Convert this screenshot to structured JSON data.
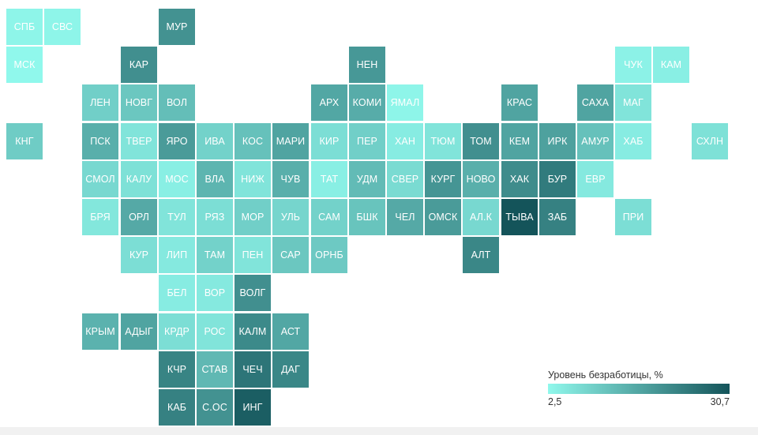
{
  "legend": {
    "title": "Уровень безработицы, %",
    "min_label": "2,5",
    "max_label": "30,7",
    "min": 2.5,
    "max": 30.7,
    "color_low": "#90f8ec",
    "color_high": "#14545a"
  },
  "regions": [
    {
      "label": "СПБ",
      "col": 0,
      "row": 0,
      "value": 3.0
    },
    {
      "label": "СВС",
      "col": 1,
      "row": 0,
      "value": 3.0
    },
    {
      "label": "МУР",
      "col": 4,
      "row": 0,
      "value": 20.0
    },
    {
      "label": "МСК",
      "col": 0,
      "row": 1,
      "value": 2.5
    },
    {
      "label": "КАР",
      "col": 3,
      "row": 1,
      "value": 20.5
    },
    {
      "label": "НЕН",
      "col": 9,
      "row": 1,
      "value": 19.0
    },
    {
      "label": "ЧУК",
      "col": 16,
      "row": 1,
      "value": 3.5
    },
    {
      "label": "КАМ",
      "col": 17,
      "row": 1,
      "value": 4.0
    },
    {
      "label": "ЛЕН",
      "col": 2,
      "row": 2,
      "value": 9.5
    },
    {
      "label": "НОВГ",
      "col": 3,
      "row": 2,
      "value": 11.0
    },
    {
      "label": "ВОЛ",
      "col": 4,
      "row": 2,
      "value": 12.5
    },
    {
      "label": "АРХ",
      "col": 8,
      "row": 2,
      "value": 16.5
    },
    {
      "label": "КОМИ",
      "col": 9,
      "row": 2,
      "value": 15.5
    },
    {
      "label": "ЯМАЛ",
      "col": 10,
      "row": 2,
      "value": 3.0
    },
    {
      "label": "КРАС",
      "col": 13,
      "row": 2,
      "value": 17.0
    },
    {
      "label": "САХА",
      "col": 15,
      "row": 2,
      "value": 17.0
    },
    {
      "label": "МАГ",
      "col": 16,
      "row": 2,
      "value": 6.0
    },
    {
      "label": "КНГ",
      "col": 0,
      "row": 3,
      "value": 10.0
    },
    {
      "label": "ПСК",
      "col": 2,
      "row": 3,
      "value": 15.0
    },
    {
      "label": "ТВЕР",
      "col": 3,
      "row": 3,
      "value": 6.0
    },
    {
      "label": "ЯРО",
      "col": 4,
      "row": 3,
      "value": 18.5
    },
    {
      "label": "ИВА",
      "col": 5,
      "row": 3,
      "value": 9.0
    },
    {
      "label": "КОС",
      "col": 6,
      "row": 3,
      "value": 12.0
    },
    {
      "label": "МАРИ",
      "col": 7,
      "row": 3,
      "value": 17.0
    },
    {
      "label": "КИР",
      "col": 8,
      "row": 3,
      "value": 7.0
    },
    {
      "label": "ПЕР",
      "col": 9,
      "row": 3,
      "value": 9.5
    },
    {
      "label": "ХАН",
      "col": 10,
      "row": 3,
      "value": 4.5
    },
    {
      "label": "ТЮМ",
      "col": 11,
      "row": 3,
      "value": 6.0
    },
    {
      "label": "ТОМ",
      "col": 12,
      "row": 3,
      "value": 20.5
    },
    {
      "label": "КЕМ",
      "col": 13,
      "row": 3,
      "value": 17.0
    },
    {
      "label": "ИРК",
      "col": 14,
      "row": 3,
      "value": 17.5
    },
    {
      "label": "АМУР",
      "col": 15,
      "row": 3,
      "value": 12.0
    },
    {
      "label": "ХАБ",
      "col": 16,
      "row": 3,
      "value": 4.5
    },
    {
      "label": "СХЛН",
      "col": 18,
      "row": 3,
      "value": 6.5
    },
    {
      "label": "СМОЛ",
      "col": 2,
      "row": 4,
      "value": 8.0
    },
    {
      "label": "КАЛУ",
      "col": 3,
      "row": 4,
      "value": 6.5
    },
    {
      "label": "МОС",
      "col": 4,
      "row": 4,
      "value": 4.0
    },
    {
      "label": "ВЛА",
      "col": 5,
      "row": 4,
      "value": 14.0
    },
    {
      "label": "НИЖ",
      "col": 6,
      "row": 4,
      "value": 6.0
    },
    {
      "label": "ЧУВ",
      "col": 7,
      "row": 4,
      "value": 15.0
    },
    {
      "label": "ТАТ",
      "col": 8,
      "row": 4,
      "value": 4.0
    },
    {
      "label": "УДМ",
      "col": 9,
      "row": 4,
      "value": 13.0
    },
    {
      "label": "СВЕР",
      "col": 10,
      "row": 4,
      "value": 7.5
    },
    {
      "label": "КУРГ",
      "col": 11,
      "row": 4,
      "value": 19.5
    },
    {
      "label": "НОВО",
      "col": 12,
      "row": 4,
      "value": 15.0
    },
    {
      "label": "ХАК",
      "col": 13,
      "row": 4,
      "value": 21.0
    },
    {
      "label": "БУР",
      "col": 14,
      "row": 4,
      "value": 24.0
    },
    {
      "label": "ЕВР",
      "col": 15,
      "row": 4,
      "value": 5.0
    },
    {
      "label": "БРЯ",
      "col": 2,
      "row": 5,
      "value": 5.5
    },
    {
      "label": "ОРЛ",
      "col": 3,
      "row": 5,
      "value": 16.0
    },
    {
      "label": "ТУЛ",
      "col": 4,
      "row": 5,
      "value": 6.0
    },
    {
      "label": "РЯЗ",
      "col": 5,
      "row": 5,
      "value": 7.0
    },
    {
      "label": "МОР",
      "col": 6,
      "row": 5,
      "value": 9.5
    },
    {
      "label": "УЛЬ",
      "col": 7,
      "row": 5,
      "value": 8.5
    },
    {
      "label": "САМ",
      "col": 8,
      "row": 5,
      "value": 9.0
    },
    {
      "label": "БШК",
      "col": 9,
      "row": 5,
      "value": 11.5
    },
    {
      "label": "ЧЕЛ",
      "col": 10,
      "row": 5,
      "value": 16.0
    },
    {
      "label": "ОМСК",
      "col": 11,
      "row": 5,
      "value": 18.5
    },
    {
      "label": "АЛ.К",
      "col": 12,
      "row": 5,
      "value": 8.0
    },
    {
      "label": "ТЫВА",
      "col": 13,
      "row": 5,
      "value": 30.7
    },
    {
      "label": "ЗАБ",
      "col": 14,
      "row": 5,
      "value": 23.0
    },
    {
      "label": "ПРИ",
      "col": 16,
      "row": 5,
      "value": 7.0
    },
    {
      "label": "КУР",
      "col": 3,
      "row": 6,
      "value": 7.0
    },
    {
      "label": "ЛИП",
      "col": 4,
      "row": 6,
      "value": 5.0
    },
    {
      "label": "ТАМ",
      "col": 5,
      "row": 6,
      "value": 9.0
    },
    {
      "label": "ПЕН",
      "col": 6,
      "row": 6,
      "value": 6.0
    },
    {
      "label": "САР",
      "col": 7,
      "row": 6,
      "value": 11.0
    },
    {
      "label": "ОРНБ",
      "col": 8,
      "row": 6,
      "value": 10.5
    },
    {
      "label": "АЛТ",
      "col": 12,
      "row": 6,
      "value": 22.0
    },
    {
      "label": "БЕЛ",
      "col": 4,
      "row": 7,
      "value": 4.5
    },
    {
      "label": "ВОР",
      "col": 5,
      "row": 7,
      "value": 5.0
    },
    {
      "label": "ВОЛГ",
      "col": 6,
      "row": 7,
      "value": 20.5
    },
    {
      "label": "КРЫМ",
      "col": 2,
      "row": 8,
      "value": 14.5
    },
    {
      "label": "АДЫГ",
      "col": 3,
      "row": 8,
      "value": 17.0
    },
    {
      "label": "КРДР",
      "col": 4,
      "row": 8,
      "value": 7.0
    },
    {
      "label": "РОС",
      "col": 5,
      "row": 8,
      "value": 6.0
    },
    {
      "label": "КАЛМ",
      "col": 6,
      "row": 8,
      "value": 21.5
    },
    {
      "label": "АСТ",
      "col": 7,
      "row": 8,
      "value": 16.5
    },
    {
      "label": "КЧР",
      "col": 4,
      "row": 9,
      "value": 22.5
    },
    {
      "label": "СТАВ",
      "col": 5,
      "row": 9,
      "value": 13.5
    },
    {
      "label": "ЧЕЧ",
      "col": 6,
      "row": 9,
      "value": 25.0
    },
    {
      "label": "ДАГ",
      "col": 7,
      "row": 9,
      "value": 22.0
    },
    {
      "label": "КАБ",
      "col": 4,
      "row": 10,
      "value": 23.0
    },
    {
      "label": "С.ОС",
      "col": 5,
      "row": 10,
      "value": 20.0
    },
    {
      "label": "ИНГ",
      "col": 6,
      "row": 10,
      "value": 29.0
    }
  ]
}
